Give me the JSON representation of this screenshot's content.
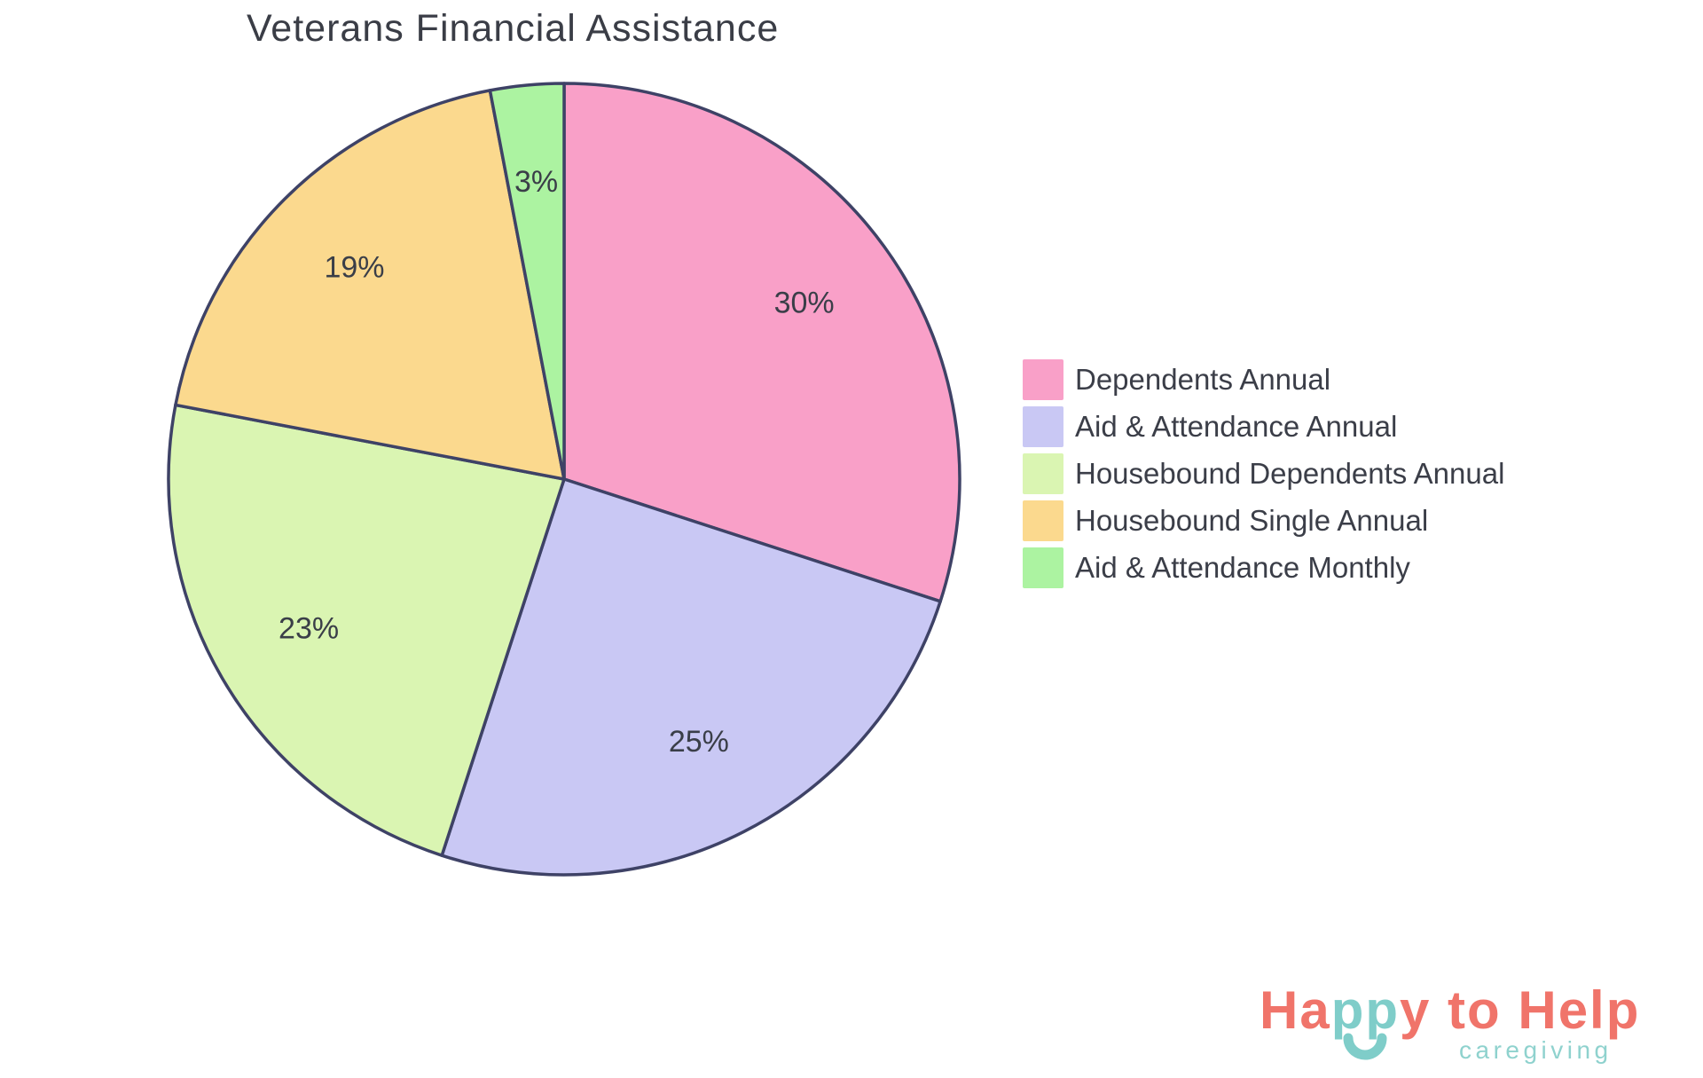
{
  "title": "Veterans Financial Assistance",
  "chart_data": {
    "type": "pie",
    "title": "Veterans Financial Assistance",
    "labels": [
      "Dependents Annual",
      "Aid & Attendance Annual",
      "Housebound Dependents Annual",
      "Housebound Single Annual",
      "Aid & Attendance Monthly"
    ],
    "values": [
      30,
      25,
      23,
      19,
      3
    ],
    "slice_labels": [
      "30%",
      "25%",
      "23%",
      "19%",
      "3%"
    ],
    "colors": [
      "#f9a0c8",
      "#c9c8f4",
      "#daf5b2",
      "#fbd98e",
      "#acf3a1"
    ],
    "stroke_color": "#3e4266",
    "label_color": "#3a3e48",
    "start_angle_deg": 0,
    "direction": "clockwise",
    "legend_position": "right",
    "labels_inside": true
  },
  "branding": {
    "segments": [
      {
        "text": "Ha",
        "color": "#f0746a"
      },
      {
        "text": "pp",
        "color": "#7fcdc9"
      },
      {
        "text": "y",
        "color": "#f0746a"
      },
      {
        "text": " to Help",
        "color": "#f0746a"
      }
    ],
    "tagline": "caregiving",
    "coral": "#f0746a",
    "teal": "#7fcdc9"
  }
}
